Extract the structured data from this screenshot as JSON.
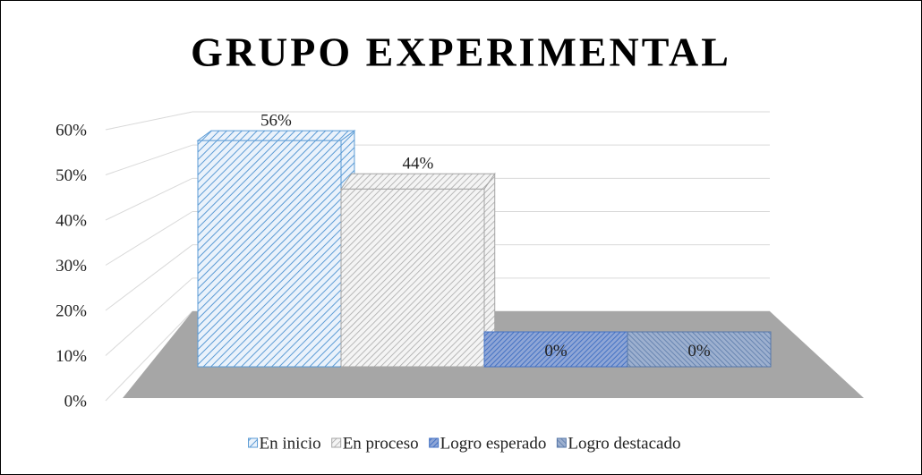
{
  "chart_data": {
    "type": "bar3d",
    "title": "GRUPO EXPERIMENTAL",
    "categories": [
      "En inicio",
      "En proceso",
      "Logro esperado",
      "Logro destacado"
    ],
    "values": [
      56,
      44,
      0,
      0
    ],
    "value_labels": [
      "56%",
      "44%",
      "0%",
      "0%"
    ],
    "colors": [
      "#5b9bd5",
      "#a5a5a5",
      "#4472c4",
      "#5677a8"
    ],
    "ylim": [
      0,
      60
    ],
    "yticks": [
      {
        "value": 0,
        "label": "0%"
      },
      {
        "value": 10,
        "label": "10%"
      },
      {
        "value": 20,
        "label": "20%"
      },
      {
        "value": 30,
        "label": "30%"
      },
      {
        "value": 40,
        "label": "40%"
      },
      {
        "value": 50,
        "label": "50%"
      },
      {
        "value": 60,
        "label": "60%"
      }
    ],
    "grid": true,
    "legend": "bottom"
  }
}
